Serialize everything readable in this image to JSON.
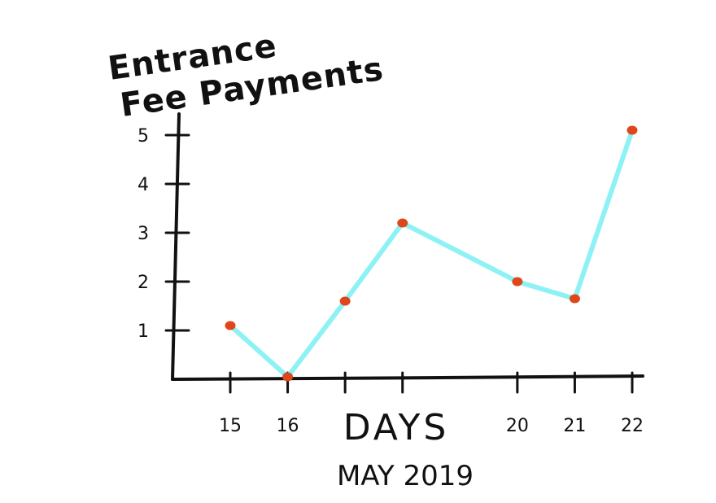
{
  "chart_data": {
    "type": "line",
    "ylabel_lines": [
      "Entrance",
      "Fee Payments"
    ],
    "xlabel": "DAYS",
    "subtitle": "MAY 2019",
    "x": [
      15,
      16,
      17,
      18,
      20,
      21,
      22
    ],
    "x_tick_labels": [
      "15",
      "16",
      "",
      "",
      "20",
      "21",
      "22"
    ],
    "values": [
      1.1,
      0.05,
      1.6,
      3.2,
      2.0,
      1.65,
      5.1
    ],
    "y_ticks": [
      1,
      2,
      3,
      4,
      5
    ],
    "ylim": [
      0,
      5.5
    ],
    "grid": false,
    "line_color": "#8ef2f5",
    "point_color": "#e0461c",
    "axis_color": "#111111"
  }
}
